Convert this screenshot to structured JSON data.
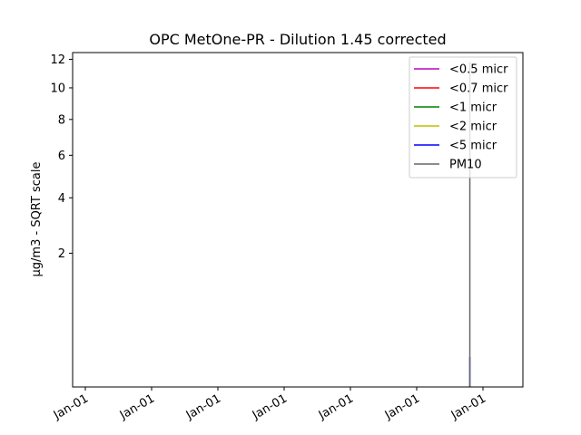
{
  "chart_data": {
    "type": "line",
    "title": "OPC MetOne-PR - Dilution 1.45 corrected",
    "ylabel": "µg/m3 - SQRT scale",
    "xlabel": "",
    "y_scale": "sqrt",
    "ylim": [
      0,
      12.5
    ],
    "yticks": [
      2,
      4,
      6,
      8,
      10,
      12
    ],
    "x_tick_labels": [
      "Jan-01",
      "Jan-01",
      "Jan-01",
      "Jan-01",
      "Jan-01",
      "Jan-01",
      "Jan-01"
    ],
    "x_tick_rotation": 30,
    "grid": false,
    "legend_position": "top-right",
    "x_index_range": [
      0,
      1
    ],
    "series": [
      {
        "name": "<0.5 micr",
        "color": "#bf00bf",
        "points": []
      },
      {
        "name": "<0.7 micr",
        "color": "#ff0000",
        "points": []
      },
      {
        "name": "<1 micr",
        "color": "#008000",
        "points": []
      },
      {
        "name": "<2 micr",
        "color": "#bfbf00",
        "points": []
      },
      {
        "name": "<5 micr",
        "color": "#0000ff",
        "points": [
          [
            0.967,
            0.0
          ],
          [
            0.967,
            0.1
          ]
        ]
      },
      {
        "name": "PM10",
        "color": "#666666",
        "points": [
          [
            0.967,
            0.0
          ],
          [
            0.967,
            11.8
          ]
        ]
      }
    ]
  }
}
